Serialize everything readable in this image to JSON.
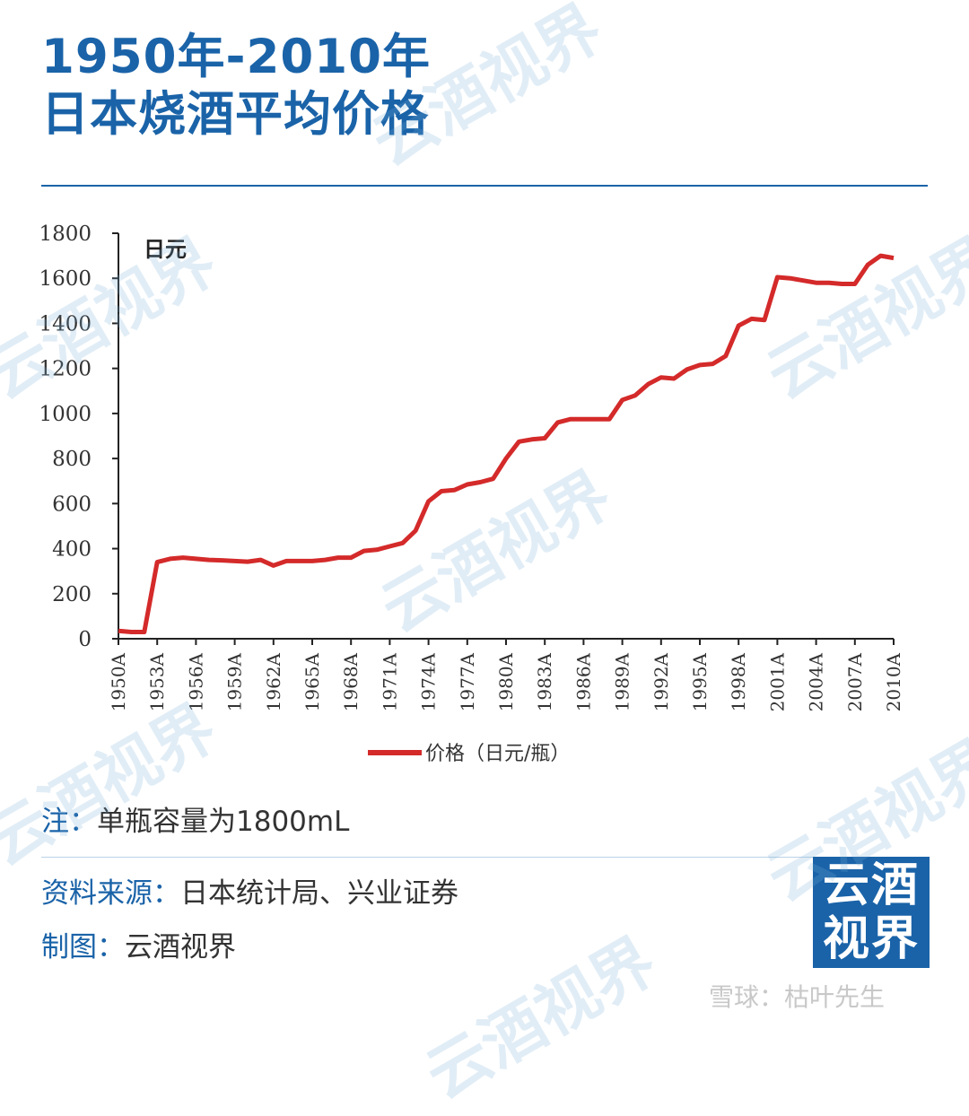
{
  "header": {
    "title_line1": "1950年-2010年",
    "title_line2": "日本烧酒平均价格"
  },
  "chart_data": {
    "type": "line",
    "unit_label": "日元",
    "ylim": [
      0,
      1800
    ],
    "yticks": [
      0,
      200,
      400,
      600,
      800,
      1000,
      1200,
      1400,
      1600,
      1800
    ],
    "x_tick_labels": [
      "1950A",
      "1953A",
      "1956A",
      "1959A",
      "1962A",
      "1965A",
      "1968A",
      "1971A",
      "1974A",
      "1977A",
      "1980A",
      "1983A",
      "1986A",
      "1989A",
      "1992A",
      "1995A",
      "1998A",
      "2001A",
      "2004A",
      "2007A",
      "2010A"
    ],
    "grid": false,
    "legend_position": "bottom",
    "series": [
      {
        "name": "价格（日元/瓶）",
        "color": "#d42a2a",
        "x": [
          1950,
          1951,
          1952,
          1953,
          1954,
          1955,
          1956,
          1957,
          1958,
          1959,
          1960,
          1961,
          1962,
          1963,
          1964,
          1965,
          1966,
          1967,
          1968,
          1969,
          1970,
          1971,
          1972,
          1973,
          1974,
          1975,
          1976,
          1977,
          1978,
          1979,
          1980,
          1981,
          1982,
          1983,
          1984,
          1985,
          1986,
          1987,
          1988,
          1989,
          1990,
          1991,
          1992,
          1993,
          1994,
          1995,
          1996,
          1997,
          1998,
          1999,
          2000,
          2001,
          2002,
          2003,
          2004,
          2005,
          2006,
          2007,
          2008,
          2009,
          2010
        ],
        "values": [
          35,
          30,
          30,
          340,
          355,
          360,
          355,
          350,
          348,
          345,
          342,
          350,
          325,
          345,
          345,
          345,
          350,
          360,
          360,
          390,
          395,
          410,
          425,
          480,
          610,
          655,
          660,
          685,
          695,
          710,
          800,
          875,
          885,
          890,
          960,
          975,
          975,
          975,
          975,
          1060,
          1080,
          1130,
          1160,
          1155,
          1195,
          1215,
          1220,
          1255,
          1390,
          1420,
          1415,
          1605,
          1600,
          1590,
          1580,
          1580,
          1575,
          1575,
          1660,
          1700,
          1690
        ]
      }
    ]
  },
  "notes": {
    "note_label": "注：",
    "note_value": "单瓶容量为1800mL",
    "source_label": "资料来源：",
    "source_value": "日本统计局、兴业证券",
    "maker_label": "制图：",
    "maker_value": "云酒视界"
  },
  "brand": {
    "logo_line1": "云酒",
    "logo_line2": "视界",
    "watermark_text": "云酒视界",
    "platform_mark": "雪球：枯叶先生",
    "accent_color": "#1a63a8"
  }
}
